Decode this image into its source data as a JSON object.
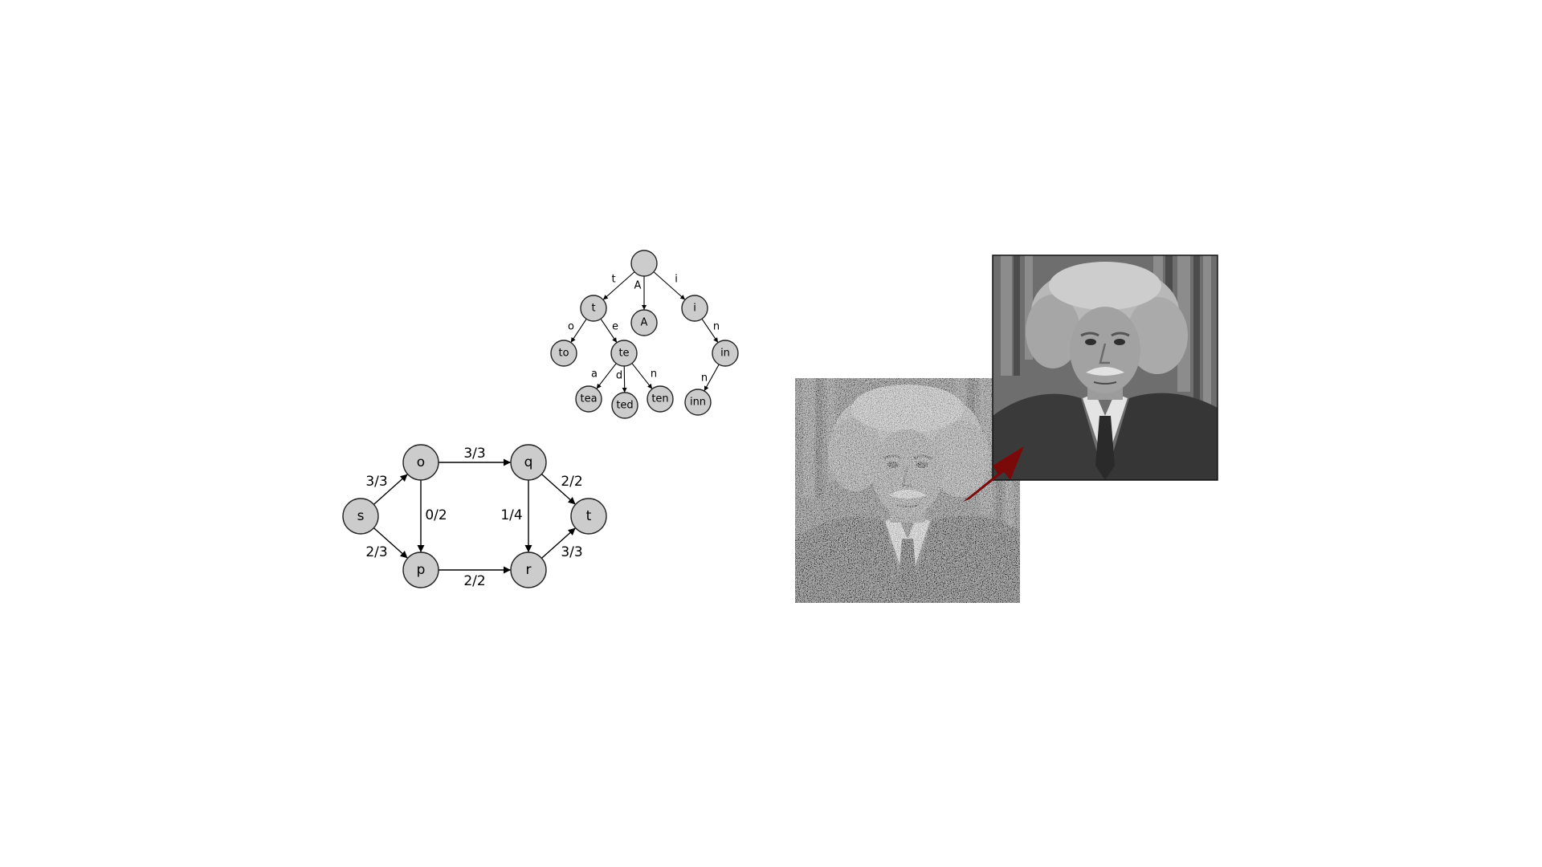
{
  "trie": {
    "nodes": [
      {
        "id": "root",
        "label": ""
      },
      {
        "id": "t",
        "label": "t"
      },
      {
        "id": "A",
        "label": "A"
      },
      {
        "id": "i",
        "label": "i"
      },
      {
        "id": "to",
        "label": "to"
      },
      {
        "id": "te",
        "label": "te"
      },
      {
        "id": "in",
        "label": "in"
      },
      {
        "id": "tea",
        "label": "tea"
      },
      {
        "id": "ted",
        "label": "ted"
      },
      {
        "id": "ten",
        "label": "ten"
      },
      {
        "id": "inn",
        "label": "inn"
      }
    ],
    "edges": [
      {
        "from": "root",
        "to": "t",
        "label": "t"
      },
      {
        "from": "root",
        "to": "A",
        "label": "A"
      },
      {
        "from": "root",
        "to": "i",
        "label": "i"
      },
      {
        "from": "t",
        "to": "to",
        "label": "o"
      },
      {
        "from": "t",
        "to": "te",
        "label": "e"
      },
      {
        "from": "te",
        "to": "tea",
        "label": "a"
      },
      {
        "from": "te",
        "to": "ted",
        "label": "d"
      },
      {
        "from": "te",
        "to": "ten",
        "label": "n"
      },
      {
        "from": "i",
        "to": "in",
        "label": "n"
      },
      {
        "from": "in",
        "to": "inn",
        "label": "n"
      }
    ]
  },
  "flow_network": {
    "nodes": [
      {
        "id": "s",
        "label": "s"
      },
      {
        "id": "o",
        "label": "o"
      },
      {
        "id": "p",
        "label": "p"
      },
      {
        "id": "q",
        "label": "q"
      },
      {
        "id": "r",
        "label": "r"
      },
      {
        "id": "t",
        "label": "t"
      }
    ],
    "edges": [
      {
        "from": "s",
        "to": "o",
        "label": "3/3"
      },
      {
        "from": "s",
        "to": "p",
        "label": "2/3"
      },
      {
        "from": "o",
        "to": "q",
        "label": "3/3"
      },
      {
        "from": "o",
        "to": "p",
        "label": "0/2"
      },
      {
        "from": "p",
        "to": "r",
        "label": "2/2"
      },
      {
        "from": "q",
        "to": "r",
        "label": "1/4"
      },
      {
        "from": "q",
        "to": "t",
        "label": "2/2"
      },
      {
        "from": "r",
        "to": "t",
        "label": "3/3"
      }
    ]
  },
  "denoising": {
    "noisy_image": {
      "description": "noisy grayscale portrait"
    },
    "clean_image": {
      "description": "denoised grayscale portrait"
    },
    "arrow_color": "#7a0a0a"
  }
}
